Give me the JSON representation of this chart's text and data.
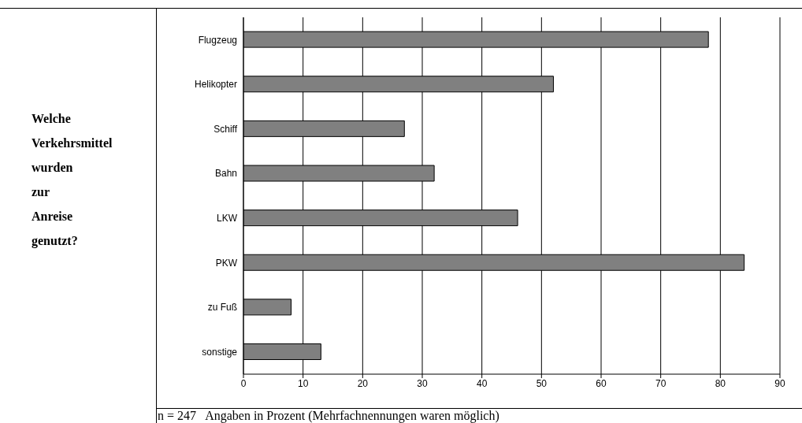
{
  "chart_data": {
    "type": "bar",
    "orientation": "horizontal",
    "title": "Welche Verkehrsmittel wurden zur Anreise genutzt?",
    "categories": [
      "Flugzeug",
      "Helikopter",
      "Schiff",
      "Bahn",
      "LKW",
      "PKW",
      "zu Fuß",
      "sonstige"
    ],
    "values": [
      78,
      52,
      27,
      32,
      46,
      84,
      8,
      13
    ],
    "color": "#808080",
    "xlim": [
      0,
      90
    ],
    "xticks": [
      0,
      10,
      20,
      30,
      40,
      50,
      60,
      70,
      80,
      90
    ],
    "grid": "x",
    "annotations": [
      "n = 247   Angaben in Prozent (Mehrfachnennungen waren möglich)"
    ]
  }
}
